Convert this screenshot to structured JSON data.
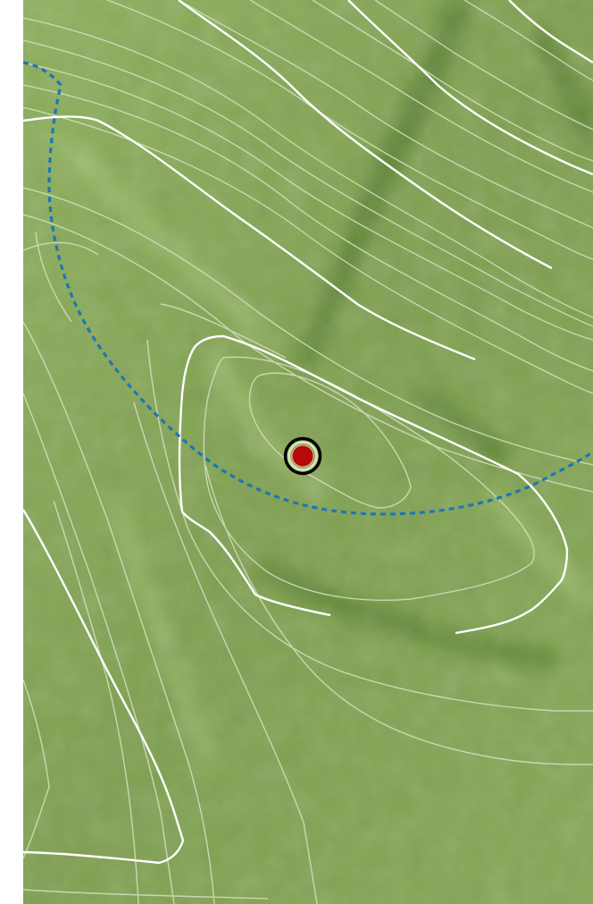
{
  "map": {
    "colors": {
      "terrain_base": "#7fa052",
      "terrain_light": "#9cba6a",
      "terrain_dark": "#4f7a2a",
      "contour_minor": "#d8e2c4",
      "contour_major": "#ffffff",
      "boundary": "#1b77b6",
      "marker_fill": "#b40a0a",
      "marker_ring": "#000000"
    },
    "layers": [
      "terrain-hillshade",
      "contour-lines",
      "index-contours",
      "boundary-line",
      "location-marker"
    ],
    "marker": {
      "icon": "location-pin-icon"
    },
    "boundary_style": "dashed"
  }
}
